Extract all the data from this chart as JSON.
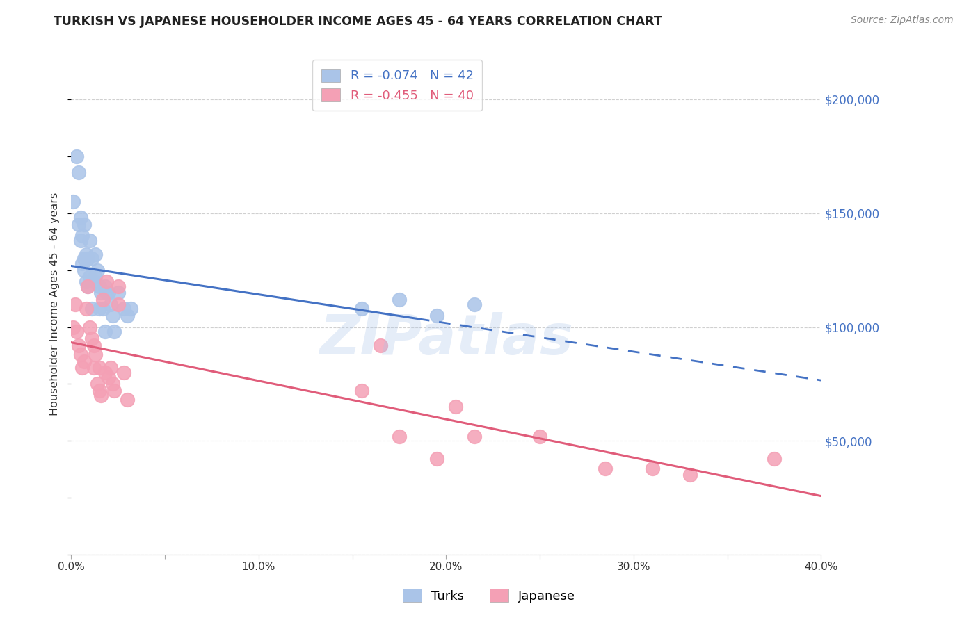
{
  "title": "TURKISH VS JAPANESE HOUSEHOLDER INCOME AGES 45 - 64 YEARS CORRELATION CHART",
  "source": "Source: ZipAtlas.com",
  "ylabel": "Householder Income Ages 45 - 64 years",
  "xlim": [
    0.0,
    0.4
  ],
  "ylim": [
    0,
    220000
  ],
  "yticks": [
    0,
    50000,
    100000,
    150000,
    200000
  ],
  "ytick_labels": [
    "",
    "$50,000",
    "$100,000",
    "$150,000",
    "$200,000"
  ],
  "xtick_labels": [
    "0.0%",
    "",
    "10.0%",
    "",
    "20.0%",
    "",
    "30.0%",
    "",
    "40.0%"
  ],
  "xticks": [
    0.0,
    0.05,
    0.1,
    0.15,
    0.2,
    0.25,
    0.3,
    0.35,
    0.4
  ],
  "background_color": "#ffffff",
  "grid_color": "#d0d0d0",
  "turks_color": "#aac4e8",
  "japanese_color": "#f4a0b5",
  "turks_line_color": "#4472c4",
  "japanese_line_color": "#e05c7a",
  "legend_turks_r": "-0.074",
  "legend_turks_n": "42",
  "legend_japanese_r": "-0.455",
  "legend_japanese_n": "40",
  "watermark": "ZIPatlas",
  "turks_x": [
    0.001,
    0.003,
    0.004,
    0.004,
    0.005,
    0.005,
    0.006,
    0.006,
    0.007,
    0.007,
    0.007,
    0.008,
    0.008,
    0.009,
    0.009,
    0.01,
    0.01,
    0.011,
    0.011,
    0.012,
    0.013,
    0.013,
    0.014,
    0.015,
    0.015,
    0.016,
    0.017,
    0.018,
    0.018,
    0.019,
    0.02,
    0.021,
    0.022,
    0.023,
    0.025,
    0.028,
    0.03,
    0.032,
    0.155,
    0.175,
    0.195,
    0.215
  ],
  "turks_y": [
    155000,
    175000,
    168000,
    145000,
    148000,
    138000,
    140000,
    128000,
    145000,
    130000,
    125000,
    132000,
    120000,
    130000,
    118000,
    138000,
    122000,
    130000,
    108000,
    120000,
    132000,
    122000,
    125000,
    108000,
    118000,
    115000,
    108000,
    118000,
    98000,
    115000,
    115000,
    110000,
    105000,
    98000,
    115000,
    108000,
    105000,
    108000,
    108000,
    112000,
    105000,
    110000
  ],
  "japanese_x": [
    0.001,
    0.002,
    0.003,
    0.004,
    0.005,
    0.006,
    0.007,
    0.008,
    0.009,
    0.01,
    0.011,
    0.012,
    0.012,
    0.013,
    0.014,
    0.015,
    0.015,
    0.016,
    0.017,
    0.018,
    0.019,
    0.02,
    0.021,
    0.022,
    0.023,
    0.025,
    0.025,
    0.028,
    0.03,
    0.155,
    0.165,
    0.175,
    0.195,
    0.205,
    0.215,
    0.25,
    0.285,
    0.31,
    0.33,
    0.375
  ],
  "japanese_y": [
    100000,
    110000,
    98000,
    92000,
    88000,
    82000,
    85000,
    108000,
    118000,
    100000,
    95000,
    92000,
    82000,
    88000,
    75000,
    82000,
    72000,
    70000,
    112000,
    80000,
    120000,
    78000,
    82000,
    75000,
    72000,
    118000,
    110000,
    80000,
    68000,
    72000,
    92000,
    52000,
    42000,
    65000,
    52000,
    52000,
    38000,
    38000,
    35000,
    42000
  ]
}
